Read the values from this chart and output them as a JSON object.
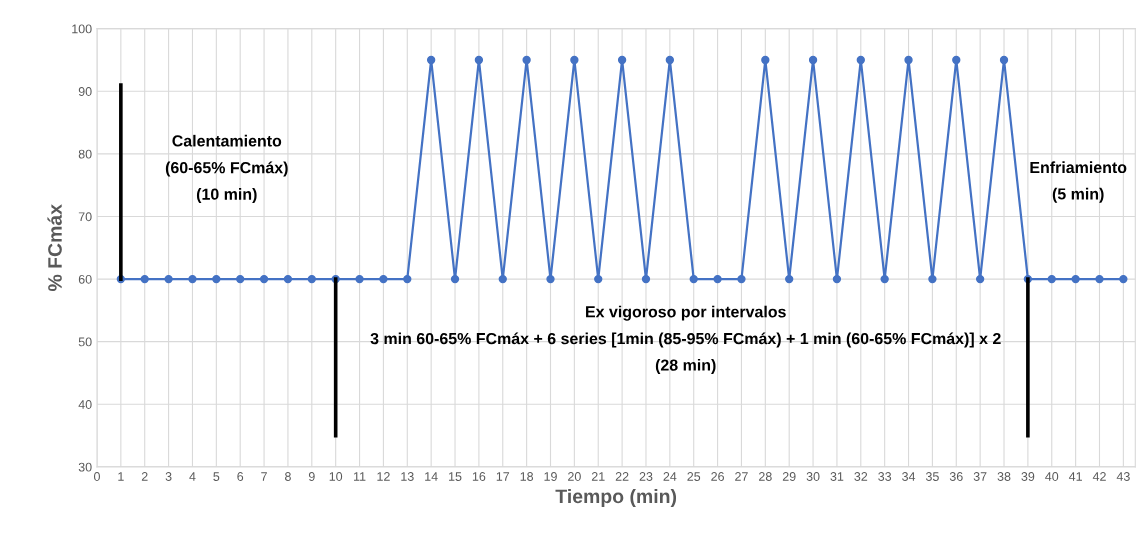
{
  "chart_data": {
    "type": "line",
    "xlabel": "Tiempo (min)",
    "ylabel": "% FCmáx",
    "x": [
      1,
      2,
      3,
      4,
      5,
      6,
      7,
      8,
      9,
      10,
      11,
      12,
      13,
      14,
      15,
      16,
      17,
      18,
      19,
      20,
      21,
      22,
      23,
      24,
      25,
      26,
      27,
      28,
      29,
      30,
      31,
      32,
      33,
      34,
      35,
      36,
      37,
      38,
      39,
      40,
      41,
      42,
      43
    ],
    "series": [
      {
        "color": "#4472c4",
        "marker": "circle",
        "values": [
          60,
          60,
          60,
          60,
          60,
          60,
          60,
          60,
          60,
          60,
          60,
          60,
          60,
          95,
          60,
          95,
          60,
          95,
          60,
          95,
          60,
          95,
          60,
          95,
          60,
          60,
          60,
          95,
          60,
          95,
          60,
          95,
          60,
          95,
          60,
          95,
          60,
          95,
          60,
          60,
          60,
          60,
          60
        ]
      },
      {
        "color": "#000000",
        "marker": "none",
        "x": [
          1,
          1
        ],
        "values": [
          60,
          91
        ]
      },
      {
        "color": "#000000",
        "marker": "none",
        "x": [
          10,
          10
        ],
        "values": [
          35,
          60
        ]
      },
      {
        "color": "#000000",
        "marker": "none",
        "x": [
          39,
          39
        ],
        "values": [
          35,
          60
        ]
      }
    ],
    "annotations": [
      "Calentamiento\n(60-65% FCmáx)\n(10 min)",
      "Enfriamiento\n(5 min)",
      "Ex vigoroso por intervalos\n3 min 60-65% FCmáx + 6 series [1min (85-95% FCmáx) + 1 min (60-65% FCmáx)] x 2\n(28 min)"
    ],
    "xlim": [
      0,
      43.5
    ],
    "xticks": [
      0,
      1,
      2,
      3,
      4,
      5,
      6,
      7,
      8,
      9,
      10,
      11,
      12,
      13,
      14,
      15,
      16,
      17,
      18,
      19,
      20,
      21,
      22,
      23,
      24,
      25,
      26,
      27,
      28,
      29,
      30,
      31,
      32,
      33,
      34,
      35,
      36,
      37,
      38,
      39,
      40,
      41,
      42,
      43
    ],
    "ylim": [
      30,
      100
    ],
    "yticks": [
      30,
      40,
      50,
      60,
      70,
      80,
      90,
      100
    ],
    "grid": true
  }
}
